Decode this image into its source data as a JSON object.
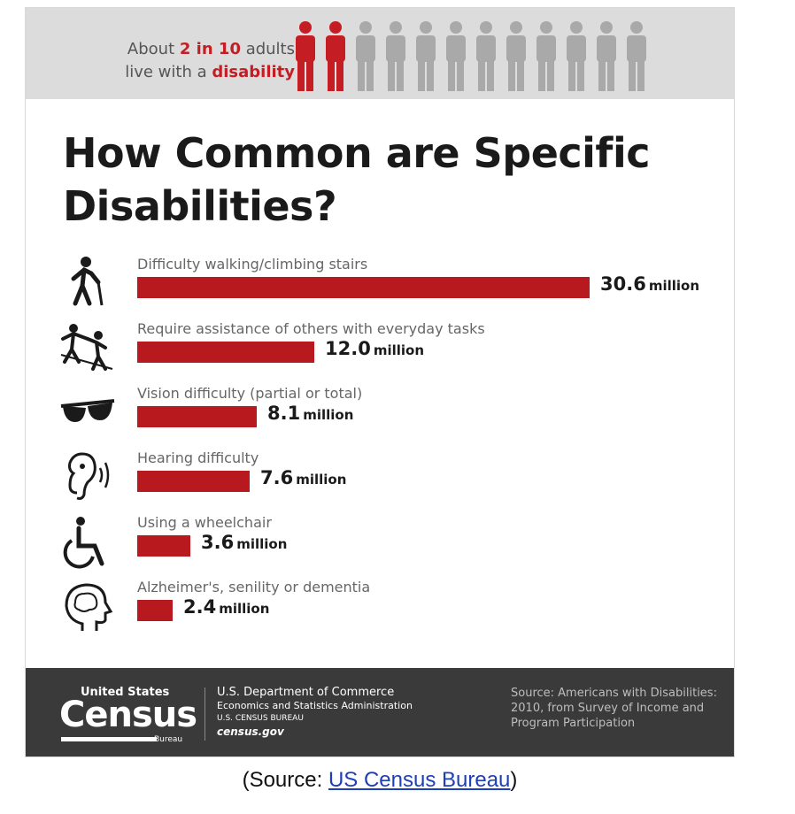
{
  "banner": {
    "line1_pre": "About ",
    "line1_hl": "2 in 10",
    "line1_post": " adults",
    "line2_pre": "live with a ",
    "line2_hl": "disability",
    "people_total": 12,
    "people_highlighted": 2,
    "highlight_color": "#c41e24",
    "muted_color": "#a9a9a9"
  },
  "title": "How Common are Specific Disabilities?",
  "chart_data": {
    "type": "bar",
    "orientation": "horizontal",
    "title": "How Common are Specific Disabilities?",
    "xlabel": "",
    "ylabel": "",
    "unit": "million",
    "xlim": [
      0,
      30.6
    ],
    "grid": false,
    "legend": "none",
    "bar_color": "#b8191f",
    "categories": [
      "Difficulty walking/climbing stairs",
      "Require assistance of others with everyday tasks",
      "Vision difficulty (partial or total)",
      "Hearing difficulty",
      "Using a wheelchair",
      "Alzheimer's, senility or dementia"
    ],
    "values": [
      30.6,
      12.0,
      8.1,
      7.6,
      3.6,
      2.4
    ],
    "value_labels": [
      "30.6",
      "12.0",
      "8.1",
      "7.6",
      "3.6",
      "2.4"
    ],
    "icons": [
      "walking-cane-icon",
      "assistance-icon",
      "sunglasses-icon",
      "hearing-icon",
      "wheelchair-icon",
      "brain-head-icon"
    ]
  },
  "footer": {
    "logo_top": "United States",
    "logo_main": "Census",
    "logo_bottom": "Bureau",
    "dept_line1": "U.S. Department of Commerce",
    "dept_line2": "Economics and Statistics Administration",
    "dept_line3": "U.S. CENSUS BUREAU",
    "dept_line4": "census.gov",
    "source": "Source: Americans with Disabilities: 2010, from Survey of Income and Program Participation"
  },
  "caption": {
    "pre": "(Source: ",
    "link": "US Census Bureau",
    "post": ")"
  }
}
